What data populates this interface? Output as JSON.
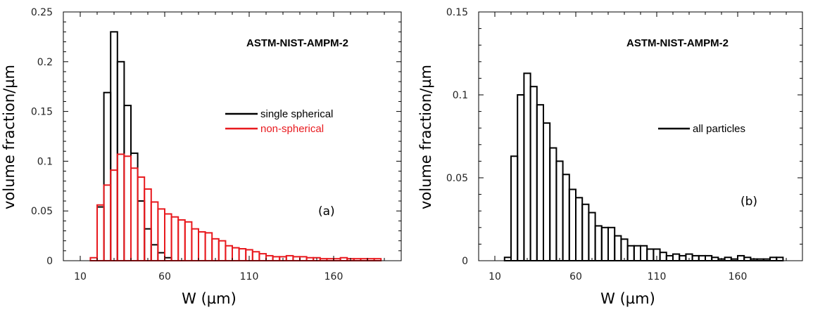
{
  "chart_data": [
    {
      "panel": "a",
      "type": "bar",
      "title": "ASTM-NIST-AMPM-2",
      "xlabel": "W (µm)",
      "ylabel": "volume fraction/µm",
      "panel_label": "(a)",
      "xlim": [
        0,
        200
      ],
      "ylim": [
        0,
        0.25
      ],
      "xticks": [
        10,
        60,
        110,
        160
      ],
      "yticks": [
        0,
        0.05,
        0.1,
        0.15,
        0.2,
        0.25
      ],
      "ytick_labels": [
        "0",
        "0.05",
        "0.1",
        "0.15",
        "0.2",
        "0.25"
      ],
      "bin_width": 4,
      "legend_position": "upper-right",
      "series": [
        {
          "name": "single spherical",
          "color": "#000000",
          "bins_start": [
            20,
            24,
            28,
            32,
            36,
            40,
            44,
            48,
            52,
            56,
            60
          ],
          "values": [
            0.054,
            0.169,
            0.23,
            0.2,
            0.156,
            0.108,
            0.06,
            0.032,
            0.016,
            0.008,
            0.003
          ]
        },
        {
          "name": "non-spherical",
          "color": "#e8191e",
          "bins_start": [
            16,
            20,
            24,
            28,
            32,
            36,
            40,
            44,
            48,
            52,
            56,
            60,
            64,
            68,
            72,
            76,
            80,
            84,
            88,
            92,
            96,
            100,
            104,
            108,
            112,
            116,
            120,
            124,
            128,
            132,
            136,
            140,
            144,
            148,
            152,
            156,
            160,
            164,
            168,
            172,
            176,
            180,
            184
          ],
          "values": [
            0.003,
            0.056,
            0.076,
            0.091,
            0.107,
            0.105,
            0.093,
            0.084,
            0.072,
            0.059,
            0.052,
            0.047,
            0.044,
            0.041,
            0.039,
            0.032,
            0.029,
            0.028,
            0.022,
            0.02,
            0.015,
            0.013,
            0.012,
            0.011,
            0.009,
            0.007,
            0.005,
            0.004,
            0.004,
            0.005,
            0.004,
            0.004,
            0.003,
            0.003,
            0.002,
            0.002,
            0.002,
            0.003,
            0.002,
            0.002,
            0.002,
            0.002,
            0.002
          ]
        }
      ]
    },
    {
      "panel": "b",
      "type": "bar",
      "title": "ASTM-NIST-AMPM-2",
      "xlabel": "W (µm)",
      "ylabel": "volume fraction/µm",
      "panel_label": "(b)",
      "xlim": [
        0,
        200
      ],
      "ylim": [
        0,
        0.15
      ],
      "xticks": [
        10,
        60,
        110,
        160
      ],
      "yticks": [
        0,
        0.05,
        0.1,
        0.15
      ],
      "ytick_labels": [
        "0",
        "0.05",
        "0.1",
        "0.15"
      ],
      "bin_width": 4,
      "legend_position": "right",
      "series": [
        {
          "name": "all particles",
          "color": "#000000",
          "bins_start": [
            16,
            20,
            24,
            28,
            32,
            36,
            40,
            44,
            48,
            52,
            56,
            60,
            64,
            68,
            72,
            76,
            80,
            84,
            88,
            92,
            96,
            100,
            104,
            108,
            112,
            116,
            120,
            124,
            128,
            132,
            136,
            140,
            144,
            148,
            152,
            156,
            160,
            164,
            168,
            172,
            176,
            180,
            184
          ],
          "values": [
            0.002,
            0.063,
            0.1,
            0.113,
            0.105,
            0.094,
            0.083,
            0.068,
            0.06,
            0.052,
            0.043,
            0.038,
            0.034,
            0.029,
            0.021,
            0.02,
            0.02,
            0.015,
            0.013,
            0.009,
            0.009,
            0.009,
            0.007,
            0.007,
            0.005,
            0.003,
            0.004,
            0.003,
            0.004,
            0.003,
            0.003,
            0.003,
            0.002,
            0.001,
            0.002,
            0.001,
            0.003,
            0.002,
            0.001,
            0.001,
            0.001,
            0.002,
            0.002
          ]
        }
      ]
    }
  ]
}
